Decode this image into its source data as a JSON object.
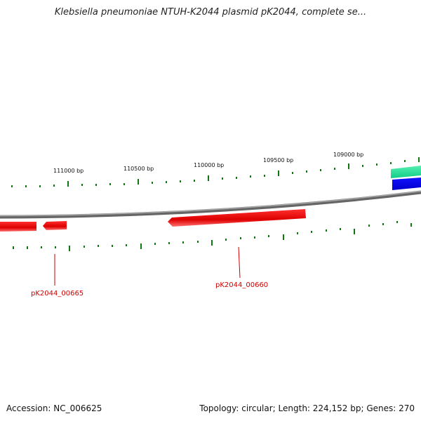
{
  "title": "Klebsiella pneumoniae NTUH-K2044 plasmid pK2044, complete se...",
  "ruler_labels": [
    "111000 bp",
    "110500 bp",
    "110000 bp",
    "109500 bp",
    "109000 bp"
  ],
  "genes": [
    {
      "id": "pK2044_00665",
      "color": "#ee0000",
      "strand": "reverse"
    },
    {
      "id": "pK2044_00660",
      "color": "#ee0000",
      "strand": "reverse"
    }
  ],
  "feature_colors": {
    "backbone": "#888888",
    "forward_feature_1": "#22dd99",
    "forward_feature_2": "#0000ee",
    "tick": "#117711"
  },
  "footer": {
    "accession": "Accession: NC_006625",
    "stats": "Topology: circular; Length: 224,152 bp; Genes: 270"
  }
}
